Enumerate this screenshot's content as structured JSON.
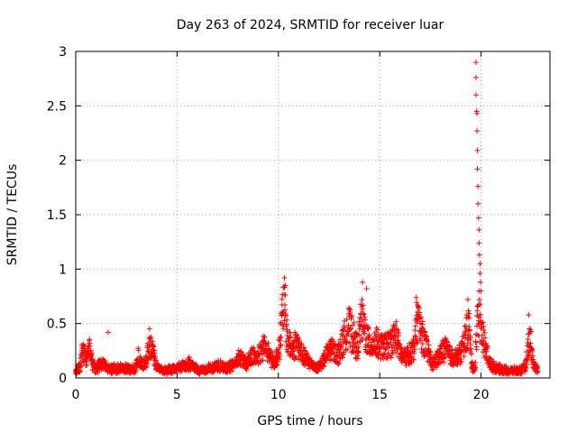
{
  "chart_data": {
    "type": "scatter",
    "title": "Day 263 of 2024, SRMTID for receiver luar",
    "xlabel": "GPS time / hours",
    "ylabel": "SRMTID / TECUs",
    "xlim": [
      0,
      23.4
    ],
    "ylim": [
      0,
      3
    ],
    "x_ticks": [
      0,
      5,
      10,
      15,
      20
    ],
    "y_ticks": [
      0,
      0.5,
      1,
      1.5,
      2,
      2.5,
      3
    ],
    "x_tick_labels": [
      "0",
      "5",
      "10",
      "15",
      "20"
    ],
    "y_tick_labels": [
      "0",
      "0.5",
      "1",
      "1.5",
      "2",
      "2.5",
      "3"
    ],
    "grid": true,
    "marker": "+",
    "color": "#ff0000",
    "series": [
      {
        "name": "SRMTID",
        "profile": [
          [
            0.0,
            0.06
          ],
          [
            0.2,
            0.12
          ],
          [
            0.35,
            0.28
          ],
          [
            0.5,
            0.18
          ],
          [
            0.7,
            0.3
          ],
          [
            0.85,
            0.12
          ],
          [
            1.0,
            0.1
          ],
          [
            1.3,
            0.14
          ],
          [
            1.6,
            0.1
          ],
          [
            2.0,
            0.09
          ],
          [
            2.5,
            0.1
          ],
          [
            2.9,
            0.08
          ],
          [
            3.1,
            0.22
          ],
          [
            3.3,
            0.12
          ],
          [
            3.5,
            0.18
          ],
          [
            3.65,
            0.36
          ],
          [
            3.8,
            0.3
          ],
          [
            3.95,
            0.12
          ],
          [
            4.3,
            0.07
          ],
          [
            4.8,
            0.09
          ],
          [
            5.2,
            0.11
          ],
          [
            5.6,
            0.14
          ],
          [
            6.0,
            0.08
          ],
          [
            6.5,
            0.09
          ],
          [
            7.0,
            0.12
          ],
          [
            7.5,
            0.1
          ],
          [
            7.8,
            0.13
          ],
          [
            8.1,
            0.22
          ],
          [
            8.4,
            0.14
          ],
          [
            8.7,
            0.22
          ],
          [
            9.0,
            0.2
          ],
          [
            9.3,
            0.33
          ],
          [
            9.5,
            0.27
          ],
          [
            9.8,
            0.14
          ],
          [
            10.05,
            0.3
          ],
          [
            10.25,
            0.75
          ],
          [
            10.45,
            0.38
          ],
          [
            10.7,
            0.28
          ],
          [
            10.9,
            0.36
          ],
          [
            11.2,
            0.22
          ],
          [
            11.5,
            0.16
          ],
          [
            11.9,
            0.1
          ],
          [
            12.2,
            0.16
          ],
          [
            12.6,
            0.3
          ],
          [
            12.9,
            0.22
          ],
          [
            13.2,
            0.36
          ],
          [
            13.45,
            0.52
          ],
          [
            13.7,
            0.4
          ],
          [
            13.9,
            0.3
          ],
          [
            14.1,
            0.58
          ],
          [
            14.3,
            0.45
          ],
          [
            14.5,
            0.32
          ],
          [
            14.8,
            0.35
          ],
          [
            15.2,
            0.3
          ],
          [
            15.5,
            0.34
          ],
          [
            15.8,
            0.42
          ],
          [
            16.1,
            0.2
          ],
          [
            16.4,
            0.22
          ],
          [
            16.7,
            0.3
          ],
          [
            16.85,
            0.6
          ],
          [
            17.0,
            0.48
          ],
          [
            17.3,
            0.3
          ],
          [
            17.6,
            0.14
          ],
          [
            17.9,
            0.2
          ],
          [
            18.2,
            0.3
          ],
          [
            18.5,
            0.22
          ],
          [
            18.8,
            0.2
          ],
          [
            19.0,
            0.25
          ],
          [
            19.2,
            0.38
          ],
          [
            19.4,
            0.52
          ],
          [
            19.55,
            0.12
          ],
          [
            19.7,
            0.1
          ],
          [
            19.85,
            0.72
          ],
          [
            20.0,
            0.5
          ],
          [
            20.2,
            0.3
          ],
          [
            20.5,
            0.12
          ],
          [
            21.0,
            0.08
          ],
          [
            21.5,
            0.07
          ],
          [
            22.0,
            0.07
          ],
          [
            22.2,
            0.12
          ],
          [
            22.4,
            0.42
          ],
          [
            22.6,
            0.12
          ],
          [
            22.8,
            0.08
          ]
        ],
        "outliers": [
          [
            1.6,
            0.42
          ],
          [
            10.3,
            0.92
          ],
          [
            10.35,
            0.85
          ],
          [
            14.15,
            0.88
          ],
          [
            14.35,
            0.82
          ],
          [
            16.8,
            0.74
          ],
          [
            19.35,
            0.72
          ],
          [
            19.75,
            2.9
          ],
          [
            19.75,
            2.76
          ],
          [
            19.75,
            2.6
          ],
          [
            19.78,
            2.45
          ],
          [
            19.8,
            2.43
          ],
          [
            19.8,
            2.27
          ],
          [
            19.82,
            2.09
          ],
          [
            19.82,
            1.92
          ],
          [
            19.85,
            1.76
          ],
          [
            19.85,
            1.6
          ],
          [
            19.88,
            1.47
          ],
          [
            19.9,
            1.36
          ],
          [
            19.9,
            1.24
          ],
          [
            19.92,
            1.13
          ],
          [
            19.95,
            1.05
          ],
          [
            19.95,
            0.96
          ],
          [
            19.97,
            0.88
          ],
          [
            20.0,
            0.8
          ],
          [
            22.35,
            0.58
          ]
        ]
      }
    ]
  }
}
